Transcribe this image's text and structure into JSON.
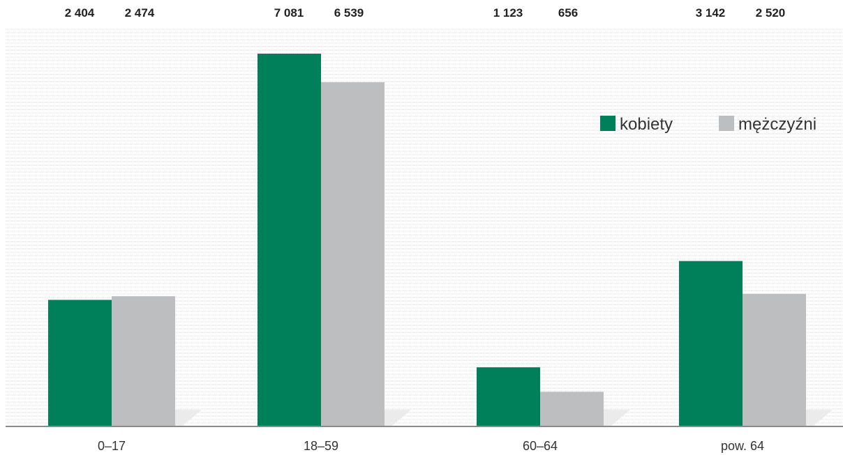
{
  "chart_data": {
    "type": "bar",
    "categories": [
      "0–17",
      "18–59",
      "60–64",
      "pow. 64"
    ],
    "series": [
      {
        "name": "kobiety",
        "values": [
          2404,
          7081,
          1123,
          3142
        ],
        "labels": [
          "2 404",
          "7 081",
          "1 123",
          "3 142"
        ],
        "color": "#00805a"
      },
      {
        "name": "mężczyźni",
        "values": [
          2474,
          6539,
          656,
          2520
        ],
        "labels": [
          "2 474",
          "6 539",
          "656",
          "2 520"
        ],
        "color": "#bdbec0"
      }
    ],
    "ylim": [
      0,
      7500
    ],
    "grid": true,
    "legend": "right"
  }
}
